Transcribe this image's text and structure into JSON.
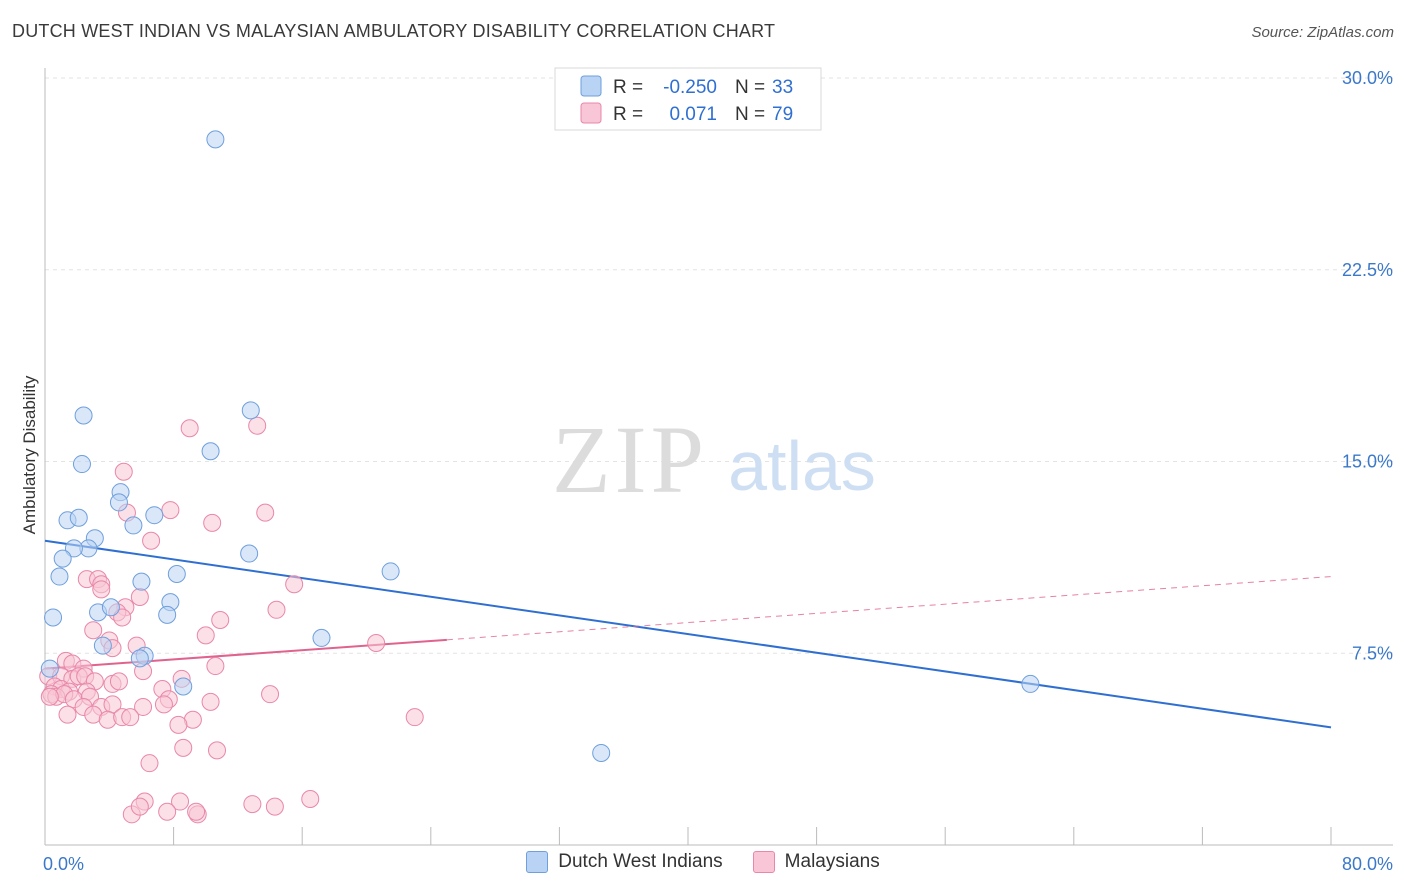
{
  "header": {
    "title": "DUTCH WEST INDIAN VS MALAYSIAN AMBULATORY DISABILITY CORRELATION CHART",
    "source": "Source: ZipAtlas.com"
  },
  "watermark": {
    "zip": "ZIP",
    "atlas": "atlas"
  },
  "colors": {
    "blue_fill": "#b9d3f4",
    "blue_stroke": "#6f9fdc",
    "blue_line": "#2f6fd1",
    "pink_fill": "#f8c6d6",
    "pink_stroke": "#e987a8",
    "pink_line": "#e0628f",
    "tick_label": "#3b78c9",
    "grid": "#e3e3e3"
  },
  "legend_top": [
    {
      "r_label": "R =",
      "r_value": "-0.250",
      "n_label": "N =",
      "n_value": "33"
    },
    {
      "r_label": "R =",
      "r_value": "0.071",
      "n_label": "N =",
      "n_value": "79"
    }
  ],
  "chart_data": {
    "type": "scatter",
    "ylabel": "Ambulatory Disability",
    "xlim": [
      0,
      80
    ],
    "ylim": [
      0,
      30
    ],
    "x_ticks": [
      {
        "value": 0,
        "label": "0.0%"
      },
      {
        "value": 80,
        "label": "80.0%"
      }
    ],
    "y_ticks": [
      {
        "value": 7.5,
        "label": "7.5%"
      },
      {
        "value": 15,
        "label": "15.0%"
      },
      {
        "value": 22.5,
        "label": "22.5%"
      },
      {
        "value": 30,
        "label": "30.0%"
      }
    ],
    "grid": true,
    "legend": "bottom-center",
    "series": [
      {
        "name": "Dutch West Indians",
        "color": "#6f9fdc",
        "r": -0.25,
        "n": 33,
        "trend": {
          "x": [
            0,
            80
          ],
          "y": [
            11.9,
            4.6
          ],
          "dashed_to": null
        },
        "points": [
          [
            10.6,
            27.6
          ],
          [
            2.4,
            16.8
          ],
          [
            12.8,
            17.0
          ],
          [
            10.3,
            15.4
          ],
          [
            2.3,
            14.9
          ],
          [
            4.7,
            13.8
          ],
          [
            4.6,
            13.4
          ],
          [
            6.8,
            12.9
          ],
          [
            1.4,
            12.7
          ],
          [
            2.1,
            12.8
          ],
          [
            5.5,
            12.5
          ],
          [
            3.1,
            12.0
          ],
          [
            2.7,
            11.6
          ],
          [
            1.8,
            11.6
          ],
          [
            1.1,
            11.2
          ],
          [
            12.7,
            11.4
          ],
          [
            0.9,
            10.5
          ],
          [
            6.0,
            10.3
          ],
          [
            8.2,
            10.6
          ],
          [
            21.5,
            10.7
          ],
          [
            7.8,
            9.5
          ],
          [
            3.3,
            9.1
          ],
          [
            4.1,
            9.3
          ],
          [
            7.6,
            9.0
          ],
          [
            0.5,
            8.9
          ],
          [
            17.2,
            8.1
          ],
          [
            3.6,
            7.8
          ],
          [
            6.2,
            7.4
          ],
          [
            5.9,
            7.3
          ],
          [
            0.3,
            6.9
          ],
          [
            8.6,
            6.2
          ],
          [
            61.3,
            6.3
          ],
          [
            34.6,
            3.6
          ]
        ]
      },
      {
        "name": "Malaysians",
        "color": "#e987a8",
        "r": 0.071,
        "n": 79,
        "trend": {
          "x": [
            0,
            80
          ],
          "y": [
            6.9,
            10.5
          ],
          "solid_until": 25
        },
        "points": [
          [
            9.0,
            16.3
          ],
          [
            13.2,
            16.4
          ],
          [
            4.9,
            14.6
          ],
          [
            7.8,
            13.1
          ],
          [
            13.7,
            13.0
          ],
          [
            5.1,
            13.0
          ],
          [
            10.4,
            12.6
          ],
          [
            6.6,
            11.9
          ],
          [
            2.6,
            10.4
          ],
          [
            3.3,
            10.4
          ],
          [
            3.5,
            10.2
          ],
          [
            15.5,
            10.2
          ],
          [
            3.5,
            10.0
          ],
          [
            5.9,
            9.7
          ],
          [
            5.0,
            9.3
          ],
          [
            4.5,
            9.1
          ],
          [
            14.4,
            9.2
          ],
          [
            4.8,
            8.9
          ],
          [
            10.9,
            8.8
          ],
          [
            3.0,
            8.4
          ],
          [
            10.0,
            8.2
          ],
          [
            4.0,
            8.0
          ],
          [
            4.2,
            7.7
          ],
          [
            5.7,
            7.8
          ],
          [
            20.6,
            7.9
          ],
          [
            1.3,
            7.2
          ],
          [
            1.7,
            7.1
          ],
          [
            2.4,
            6.9
          ],
          [
            6.1,
            6.8
          ],
          [
            10.6,
            7.0
          ],
          [
            0.2,
            6.6
          ],
          [
            1.0,
            6.6
          ],
          [
            1.7,
            6.5
          ],
          [
            2.1,
            6.6
          ],
          [
            2.5,
            6.6
          ],
          [
            3.1,
            6.4
          ],
          [
            4.2,
            6.3
          ],
          [
            4.6,
            6.4
          ],
          [
            8.5,
            6.5
          ],
          [
            0.6,
            6.2
          ],
          [
            1.0,
            6.1
          ],
          [
            1.5,
            6.0
          ],
          [
            2.6,
            6.0
          ],
          [
            7.3,
            6.1
          ],
          [
            0.4,
            5.9
          ],
          [
            0.7,
            5.8
          ],
          [
            1.2,
            5.9
          ],
          [
            0.3,
            5.8
          ],
          [
            1.8,
            5.7
          ],
          [
            2.8,
            5.8
          ],
          [
            7.7,
            5.7
          ],
          [
            14.0,
            5.9
          ],
          [
            2.4,
            5.4
          ],
          [
            3.5,
            5.4
          ],
          [
            4.2,
            5.5
          ],
          [
            6.1,
            5.4
          ],
          [
            7.4,
            5.5
          ],
          [
            10.3,
            5.6
          ],
          [
            1.4,
            5.1
          ],
          [
            3.0,
            5.1
          ],
          [
            3.9,
            4.9
          ],
          [
            4.8,
            5.0
          ],
          [
            5.3,
            5.0
          ],
          [
            9.2,
            4.9
          ],
          [
            23.0,
            5.0
          ],
          [
            8.3,
            4.7
          ],
          [
            8.6,
            3.8
          ],
          [
            10.7,
            3.7
          ],
          [
            6.5,
            3.2
          ],
          [
            6.2,
            1.7
          ],
          [
            14.3,
            1.5
          ],
          [
            16.5,
            1.8
          ],
          [
            5.4,
            1.2
          ],
          [
            9.5,
            1.2
          ],
          [
            8.4,
            1.7
          ],
          [
            9.4,
            1.3
          ],
          [
            5.9,
            1.5
          ],
          [
            7.6,
            1.3
          ],
          [
            12.9,
            1.6
          ]
        ]
      }
    ]
  }
}
